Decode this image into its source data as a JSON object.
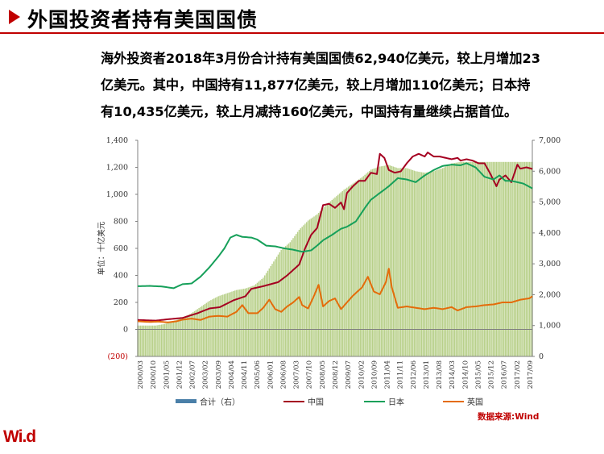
{
  "page": {
    "title": "外国投资者持有美国国债",
    "summary": [
      "海外投资者2018年3月份合计持有美国国债62,940亿美元，较上月增加23",
      "亿美元。其中，中国持有11,877亿美元，较上月增加110亿美元；日本持",
      "有10,435亿美元，较上月减持160亿美元，中国持有量继续占据首位。"
    ],
    "source": "数据来源:Wind",
    "logo": "Wi.d"
  },
  "colors": {
    "accent": "#c00000",
    "total_bar": "#b8d08a",
    "china": "#a50021",
    "japan": "#16a05a",
    "uk": "#e46c0a",
    "legend_total": "#4a7fa8"
  },
  "chart_data": {
    "type": "bar+line",
    "ylabel": "单位：十亿美元",
    "left_axis": {
      "ticks": [
        "1,400",
        "1,200",
        "1,000",
        "800",
        "600",
        "400",
        "200",
        "0",
        "(200)"
      ],
      "ylim": [
        -200,
        1400
      ]
    },
    "right_axis": {
      "ticks": [
        "7,000",
        "6,000",
        "5,000",
        "4,000",
        "3,000",
        "2,000",
        "1,000",
        "0"
      ],
      "ylim": [
        0,
        7000
      ]
    },
    "x_labels": [
      "2000/03",
      "2000/10",
      "2001/05",
      "2001/12",
      "2002/07",
      "2003/02",
      "2003/09",
      "2004/04",
      "2004/11",
      "2005/06",
      "2006/01",
      "2006/08",
      "2007/03",
      "2007/10",
      "2008/05",
      "2008/12",
      "2009/07",
      "2010/02",
      "2010/09",
      "2011/04",
      "2011/11",
      "2012/06",
      "2013/01",
      "2013/08",
      "2014/03",
      "2014/10",
      "2015/05",
      "2015/12",
      "2016/07",
      "2017/02",
      "2017/09"
    ],
    "total_right": {
      "name": "合计（右）",
      "anchors": [
        [
          0,
          1000
        ],
        [
          6,
          1000
        ],
        [
          12,
          1000
        ],
        [
          18,
          1050
        ],
        [
          24,
          1150
        ],
        [
          30,
          1250
        ],
        [
          36,
          1400
        ],
        [
          42,
          1600
        ],
        [
          48,
          1800
        ],
        [
          54,
          1950
        ],
        [
          60,
          2050
        ],
        [
          66,
          2150
        ],
        [
          72,
          2200
        ],
        [
          78,
          2300
        ],
        [
          84,
          2550
        ],
        [
          90,
          3000
        ],
        [
          96,
          3450
        ],
        [
          102,
          3700
        ],
        [
          108,
          4100
        ],
        [
          114,
          4400
        ],
        [
          120,
          4600
        ],
        [
          126,
          4900
        ],
        [
          132,
          5150
        ],
        [
          138,
          5400
        ],
        [
          144,
          5600
        ],
        [
          150,
          5800
        ],
        [
          156,
          6050
        ],
        [
          162,
          6150
        ],
        [
          168,
          6200
        ],
        [
          174,
          6100
        ],
        [
          180,
          6100
        ],
        [
          186,
          6000
        ],
        [
          192,
          5950
        ],
        [
          198,
          6000
        ],
        [
          204,
          6100
        ],
        [
          210,
          6250
        ],
        [
          216,
          6300
        ]
      ]
    },
    "series": [
      {
        "name": "中国",
        "anchors": [
          [
            0,
            70
          ],
          [
            12,
            65
          ],
          [
            20,
            75
          ],
          [
            30,
            85
          ],
          [
            40,
            120
          ],
          [
            48,
            155
          ],
          [
            55,
            165
          ],
          [
            64,
            215
          ],
          [
            72,
            245
          ],
          [
            76,
            300
          ],
          [
            84,
            320
          ],
          [
            94,
            350
          ],
          [
            100,
            400
          ],
          [
            108,
            480
          ],
          [
            112,
            600
          ],
          [
            116,
            700
          ],
          [
            120,
            750
          ],
          [
            124,
            920
          ],
          [
            128,
            930
          ],
          [
            132,
            900
          ],
          [
            136,
            940
          ],
          [
            138,
            890
          ],
          [
            140,
            1010
          ],
          [
            144,
            1060
          ],
          [
            148,
            1100
          ],
          [
            152,
            1100
          ],
          [
            156,
            1160
          ],
          [
            160,
            1150
          ],
          [
            162,
            1300
          ],
          [
            165,
            1270
          ],
          [
            168,
            1180
          ],
          [
            172,
            1160
          ],
          [
            176,
            1170
          ],
          [
            180,
            1230
          ],
          [
            184,
            1280
          ],
          [
            188,
            1300
          ],
          [
            192,
            1280
          ],
          [
            194,
            1310
          ],
          [
            198,
            1280
          ],
          [
            202,
            1280
          ],
          [
            206,
            1270
          ],
          [
            210,
            1260
          ],
          [
            214,
            1270
          ],
          [
            216,
            1250
          ],
          [
            220,
            1260
          ],
          [
            224,
            1250
          ],
          [
            228,
            1230
          ],
          [
            232,
            1230
          ],
          [
            236,
            1150
          ],
          [
            240,
            1060
          ],
          [
            242,
            1110
          ],
          [
            246,
            1140
          ],
          [
            250,
            1090
          ],
          [
            254,
            1220
          ],
          [
            256,
            1190
          ],
          [
            260,
            1200
          ],
          [
            264,
            1188
          ]
        ]
      },
      {
        "name": "日本",
        "anchors": [
          [
            0,
            320
          ],
          [
            8,
            322
          ],
          [
            16,
            318
          ],
          [
            24,
            305
          ],
          [
            30,
            335
          ],
          [
            36,
            340
          ],
          [
            42,
            390
          ],
          [
            48,
            460
          ],
          [
            54,
            540
          ],
          [
            58,
            600
          ],
          [
            62,
            680
          ],
          [
            66,
            700
          ],
          [
            70,
            685
          ],
          [
            76,
            680
          ],
          [
            80,
            665
          ],
          [
            86,
            620
          ],
          [
            92,
            615
          ],
          [
            98,
            600
          ],
          [
            104,
            590
          ],
          [
            110,
            575
          ],
          [
            116,
            585
          ],
          [
            120,
            620
          ],
          [
            124,
            660
          ],
          [
            130,
            700
          ],
          [
            136,
            745
          ],
          [
            140,
            760
          ],
          [
            146,
            800
          ],
          [
            152,
            900
          ],
          [
            156,
            960
          ],
          [
            162,
            1010
          ],
          [
            168,
            1060
          ],
          [
            174,
            1120
          ],
          [
            180,
            1110
          ],
          [
            186,
            1090
          ],
          [
            192,
            1140
          ],
          [
            198,
            1180
          ],
          [
            204,
            1210
          ],
          [
            210,
            1220
          ],
          [
            216,
            1215
          ],
          [
            220,
            1230
          ],
          [
            226,
            1200
          ],
          [
            232,
            1130
          ],
          [
            238,
            1110
          ],
          [
            242,
            1140
          ],
          [
            246,
            1100
          ],
          [
            250,
            1100
          ],
          [
            254,
            1090
          ],
          [
            258,
            1080
          ],
          [
            264,
            1044
          ]
        ]
      },
      {
        "name": "英国",
        "anchors": [
          [
            0,
            60
          ],
          [
            8,
            55
          ],
          [
            14,
            58
          ],
          [
            20,
            52
          ],
          [
            26,
            60
          ],
          [
            30,
            72
          ],
          [
            36,
            80
          ],
          [
            42,
            70
          ],
          [
            48,
            95
          ],
          [
            54,
            100
          ],
          [
            60,
            95
          ],
          [
            66,
            130
          ],
          [
            70,
            180
          ],
          [
            74,
            120
          ],
          [
            80,
            120
          ],
          [
            84,
            160
          ],
          [
            88,
            220
          ],
          [
            92,
            150
          ],
          [
            96,
            130
          ],
          [
            100,
            170
          ],
          [
            104,
            200
          ],
          [
            108,
            240
          ],
          [
            110,
            180
          ],
          [
            114,
            155
          ],
          [
            118,
            250
          ],
          [
            121,
            330
          ],
          [
            124,
            170
          ],
          [
            128,
            210
          ],
          [
            132,
            230
          ],
          [
            136,
            150
          ],
          [
            140,
            200
          ],
          [
            144,
            250
          ],
          [
            150,
            310
          ],
          [
            154,
            390
          ],
          [
            158,
            280
          ],
          [
            162,
            260
          ],
          [
            166,
            350
          ],
          [
            168,
            450
          ],
          [
            170,
            310
          ],
          [
            174,
            160
          ],
          [
            180,
            170
          ],
          [
            186,
            160
          ],
          [
            192,
            150
          ],
          [
            198,
            160
          ],
          [
            204,
            150
          ],
          [
            210,
            165
          ],
          [
            214,
            140
          ],
          [
            220,
            165
          ],
          [
            226,
            170
          ],
          [
            232,
            180
          ],
          [
            238,
            185
          ],
          [
            244,
            200
          ],
          [
            250,
            200
          ],
          [
            256,
            220
          ],
          [
            262,
            230
          ],
          [
            266,
            260
          ]
        ]
      }
    ],
    "legend": [
      "合计（右）",
      "中国",
      "日本",
      "英国"
    ],
    "legend_position": "bottom",
    "grid": false
  }
}
